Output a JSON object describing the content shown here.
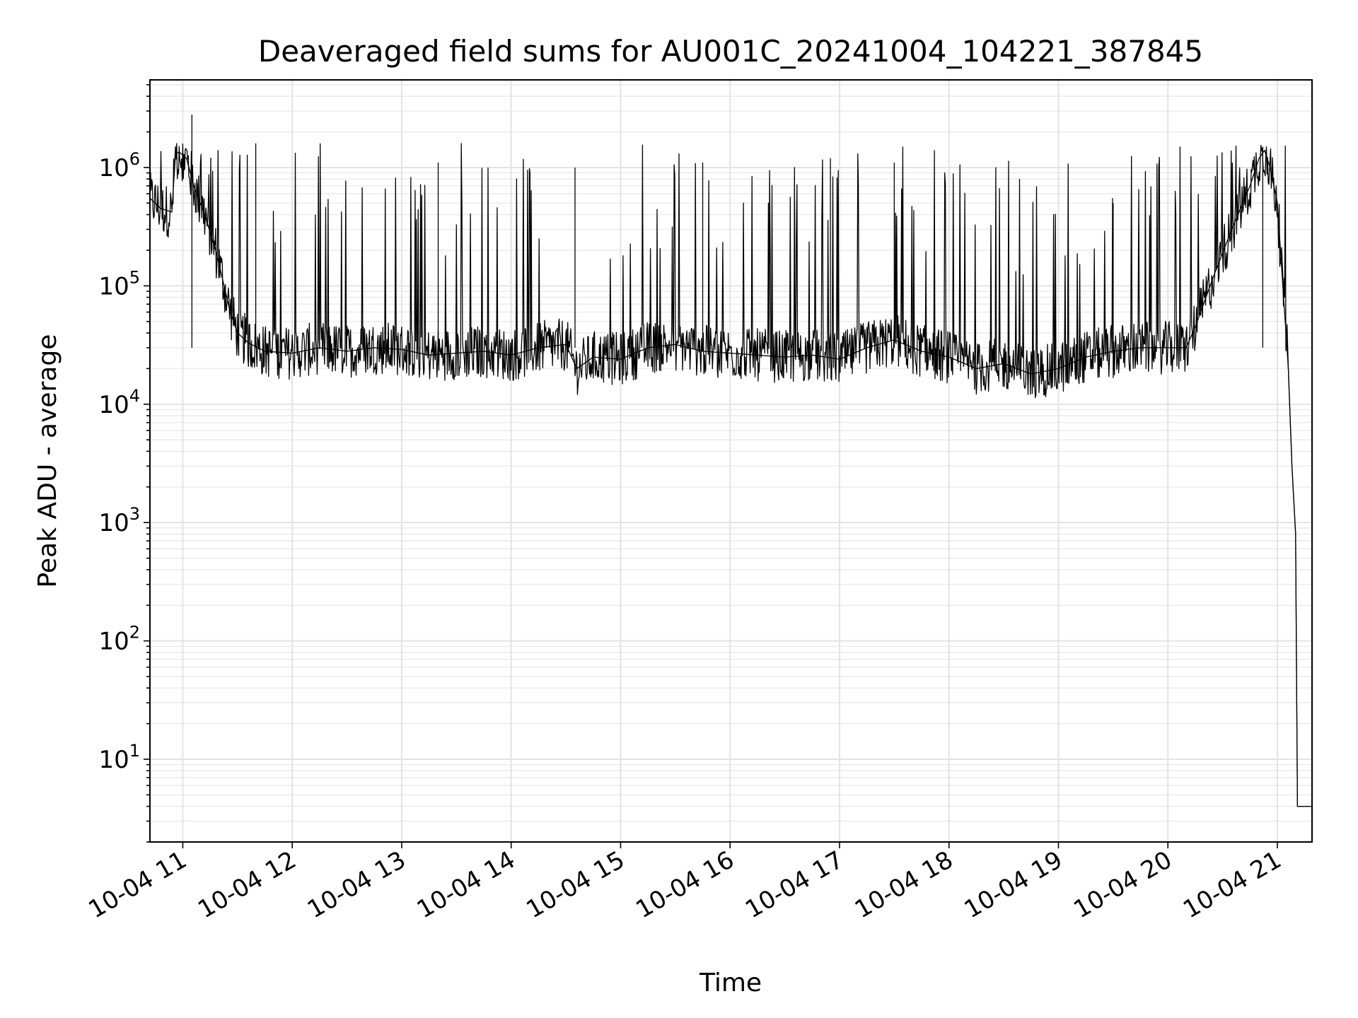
{
  "chart_data": {
    "type": "line",
    "title": "Deaveraged field sums for AU001C_20241004_104221_387845",
    "xlabel": "Time",
    "ylabel": "Peak ADU - average",
    "y_scale": "log",
    "grid": true,
    "legend": "none",
    "series_color": "#000000",
    "xlim": [
      "2024-10-04 10:42",
      "2024-10-04 21:19"
    ],
    "ylim": [
      2,
      5500000
    ],
    "x_ticks": [
      {
        "value": "2024-10-04 11:00",
        "label": "10-04 11"
      },
      {
        "value": "2024-10-04 12:00",
        "label": "10-04 12"
      },
      {
        "value": "2024-10-04 13:00",
        "label": "10-04 13"
      },
      {
        "value": "2024-10-04 14:00",
        "label": "10-04 14"
      },
      {
        "value": "2024-10-04 15:00",
        "label": "10-04 15"
      },
      {
        "value": "2024-10-04 16:00",
        "label": "10-04 16"
      },
      {
        "value": "2024-10-04 17:00",
        "label": "10-04 17"
      },
      {
        "value": "2024-10-04 18:00",
        "label": "10-04 18"
      },
      {
        "value": "2024-10-04 19:00",
        "label": "10-04 19"
      },
      {
        "value": "2024-10-04 20:00",
        "label": "10-04 20"
      },
      {
        "value": "2024-10-04 21:00",
        "label": "10-04 21"
      }
    ],
    "y_ticks": [
      {
        "value": 10,
        "base": "10",
        "exp": "1"
      },
      {
        "value": 100,
        "base": "10",
        "exp": "2"
      },
      {
        "value": 1000,
        "base": "10",
        "exp": "3"
      },
      {
        "value": 10000,
        "base": "10",
        "exp": "4"
      },
      {
        "value": 100000,
        "base": "10",
        "exp": "5"
      },
      {
        "value": 1000000,
        "base": "10",
        "exp": "6"
      }
    ],
    "series": [
      {
        "x": [
          "2024-10-04 10:42",
          "2024-10-04 10:48",
          "2024-10-04 10:54",
          "2024-10-04 10:56",
          "2024-10-04 10:58",
          "2024-10-04 11:02",
          "2024-10-04 11:06",
          "2024-10-04 11:12",
          "2024-10-04 11:18",
          "2024-10-04 11:22",
          "2024-10-04 11:26",
          "2024-10-04 11:30",
          "2024-10-04 11:36",
          "2024-10-04 11:45",
          "2024-10-04 12:00",
          "2024-10-04 12:15",
          "2024-10-04 12:30",
          "2024-10-04 12:45",
          "2024-10-04 13:00",
          "2024-10-04 13:15",
          "2024-10-04 13:30",
          "2024-10-04 13:45",
          "2024-10-04 14:00",
          "2024-10-04 14:15",
          "2024-10-04 14:30",
          "2024-10-04 14:36",
          "2024-10-04 14:45",
          "2024-10-04 15:00",
          "2024-10-04 15:15",
          "2024-10-04 15:30",
          "2024-10-04 15:45",
          "2024-10-04 16:00",
          "2024-10-04 16:15",
          "2024-10-04 16:30",
          "2024-10-04 16:45",
          "2024-10-04 17:00",
          "2024-10-04 17:15",
          "2024-10-04 17:30",
          "2024-10-04 17:45",
          "2024-10-04 18:00",
          "2024-10-04 18:15",
          "2024-10-04 18:30",
          "2024-10-04 18:45",
          "2024-10-04 19:00",
          "2024-10-04 19:15",
          "2024-10-04 19:30",
          "2024-10-04 19:45",
          "2024-10-04 20:00",
          "2024-10-04 20:10",
          "2024-10-04 20:15",
          "2024-10-04 20:25",
          "2024-10-04 20:35",
          "2024-10-04 20:45",
          "2024-10-04 20:50",
          "2024-10-04 20:53",
          "2024-10-04 20:56",
          "2024-10-04 21:00",
          "2024-10-04 21:03",
          "2024-10-04 21:06",
          "2024-10-04 21:08",
          "2024-10-04 21:10",
          "2024-10-04 21:11",
          "2024-10-04 21:12",
          "2024-10-04 21:19"
        ],
        "y": [
          550000,
          450000,
          420000,
          1300000,
          1350000,
          1200000,
          700000,
          400000,
          200000,
          110000,
          60000,
          40000,
          33000,
          28000,
          27000,
          30000,
          28000,
          30000,
          29000,
          26000,
          27000,
          28000,
          26000,
          30000,
          32000,
          20000,
          25000,
          24000,
          30000,
          32000,
          28000,
          27000,
          26000,
          25000,
          26000,
          24000,
          30000,
          35000,
          28000,
          25000,
          20000,
          22000,
          18000,
          20000,
          25000,
          28000,
          30000,
          30000,
          30000,
          45000,
          120000,
          300000,
          700000,
          1200000,
          1400000,
          1000000,
          500000,
          100000,
          20000,
          3000,
          800,
          4,
          4,
          4
        ],
        "peaks": [
          {
            "x": "2024-10-04 11:05",
            "y": 2800000
          },
          {
            "x": "2024-10-04 11:40",
            "y": 1600000
          },
          {
            "x": "2024-10-04 13:20",
            "y": 1100000
          },
          {
            "x": "2024-10-04 14:35",
            "y": 1000000
          },
          {
            "x": "2024-10-04 15:45",
            "y": 1100000
          },
          {
            "x": "2024-10-04 16:55",
            "y": 1200000
          },
          {
            "x": "2024-10-04 17:30",
            "y": 1100000
          },
          {
            "x": "2024-10-04 19:30",
            "y": 500000
          },
          {
            "x": "2024-10-04 20:52",
            "y": 1500000
          }
        ]
      }
    ]
  }
}
